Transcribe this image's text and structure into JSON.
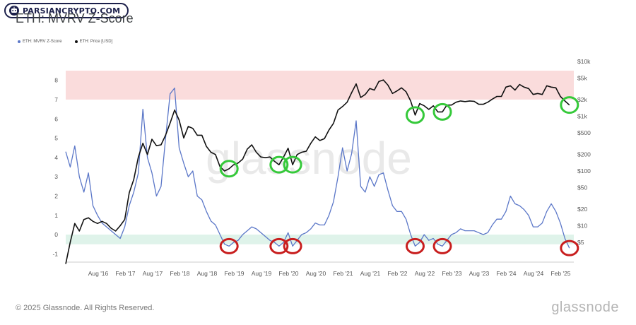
{
  "badge": {
    "text": "PARSIANCRYPTO.COM"
  },
  "colors": {
    "zscore": "#5b77c8",
    "price": "#111111",
    "red_band": "#fadcdc",
    "green_band": "#dff3ea",
    "green_circle": "#35c93a",
    "red_circle": "#c81e1e"
  },
  "footer": {
    "copyright": "© 2025 Glassnode. All Rights Reserved.",
    "brand": "glassnode"
  },
  "chart_data": {
    "type": "line",
    "title": "ETH: MVRV Z-Score",
    "legend_position": "top-left",
    "x_ticks": [
      "Aug '16",
      "Feb '17",
      "Aug '17",
      "Feb '18",
      "Aug '18",
      "Feb '19",
      "Aug '19",
      "Feb '20",
      "Aug '20",
      "Feb '21",
      "Aug '21",
      "Feb '22",
      "Aug '22",
      "Feb '23",
      "Aug '23",
      "Feb '24",
      "Aug '24",
      "Feb '25"
    ],
    "y_left": {
      "ticks": [
        "8",
        "7",
        "6",
        "5",
        "4",
        "3",
        "2",
        "1",
        "0",
        "-1"
      ],
      "range": [
        -1.5,
        8.5
      ]
    },
    "y_right": {
      "scale": "log",
      "ticks": [
        "$10k",
        "$5k",
        "$2k",
        "$1k",
        "$500",
        "$200",
        "$100",
        "$50",
        "$20",
        "$10",
        "$5"
      ],
      "range": [
        3,
        10000
      ]
    },
    "bands": [
      {
        "axis": "left",
        "from": 7,
        "to": 8.5,
        "color": "red"
      },
      {
        "axis": "left",
        "from": -0.5,
        "to": 0,
        "color": "green"
      }
    ],
    "series": [
      {
        "name": "ETH: MVRV Z-Score",
        "axis": "left",
        "color": "blue",
        "points": [
          [
            "2016-01",
            4.3
          ],
          [
            "2016-02",
            3.5
          ],
          [
            "2016-03",
            4.6
          ],
          [
            "2016-04",
            3.0
          ],
          [
            "2016-05",
            2.2
          ],
          [
            "2016-06",
            3.2
          ],
          [
            "2016-07",
            1.5
          ],
          [
            "2016-08",
            1.0
          ],
          [
            "2016-09",
            0.6
          ],
          [
            "2016-10",
            0.4
          ],
          [
            "2016-11",
            0.2
          ],
          [
            "2016-12",
            0.0
          ],
          [
            "2017-01",
            -0.2
          ],
          [
            "2017-02",
            0.4
          ],
          [
            "2017-03",
            1.5
          ],
          [
            "2017-04",
            2.2
          ],
          [
            "2017-05",
            3.2
          ],
          [
            "2017-06",
            6.5
          ],
          [
            "2017-07",
            4.0
          ],
          [
            "2017-08",
            3.2
          ],
          [
            "2017-09",
            2.0
          ],
          [
            "2017-10",
            2.5
          ],
          [
            "2017-11",
            5.0
          ],
          [
            "2017-12",
            7.3
          ],
          [
            "2018-01",
            7.6
          ],
          [
            "2018-02",
            4.5
          ],
          [
            "2018-03",
            3.7
          ],
          [
            "2018-04",
            3.0
          ],
          [
            "2018-05",
            3.3
          ],
          [
            "2018-06",
            2.0
          ],
          [
            "2018-07",
            1.8
          ],
          [
            "2018-08",
            1.2
          ],
          [
            "2018-09",
            0.7
          ],
          [
            "2018-10",
            0.5
          ],
          [
            "2018-11",
            0.0
          ],
          [
            "2018-12",
            -0.5
          ],
          [
            "2019-01",
            -0.6
          ],
          [
            "2019-02",
            -0.4
          ],
          [
            "2019-03",
            -0.3
          ],
          [
            "2019-04",
            0.0
          ],
          [
            "2019-05",
            0.2
          ],
          [
            "2019-06",
            0.4
          ],
          [
            "2019-07",
            0.3
          ],
          [
            "2019-08",
            0.1
          ],
          [
            "2019-09",
            -0.1
          ],
          [
            "2019-10",
            -0.3
          ],
          [
            "2019-11",
            -0.4
          ],
          [
            "2019-12",
            -0.6
          ],
          [
            "2020-01",
            -0.4
          ],
          [
            "2020-02",
            0.1
          ],
          [
            "2020-03",
            -0.6
          ],
          [
            "2020-04",
            -0.3
          ],
          [
            "2020-05",
            0.0
          ],
          [
            "2020-06",
            0.1
          ],
          [
            "2020-07",
            0.3
          ],
          [
            "2020-08",
            0.6
          ],
          [
            "2020-09",
            0.5
          ],
          [
            "2020-10",
            0.5
          ],
          [
            "2020-11",
            1.0
          ],
          [
            "2020-12",
            1.7
          ],
          [
            "2021-01",
            3.0
          ],
          [
            "2021-02",
            4.5
          ],
          [
            "2021-03",
            3.3
          ],
          [
            "2021-04",
            4.2
          ],
          [
            "2021-05",
            5.9
          ],
          [
            "2021-06",
            2.5
          ],
          [
            "2021-07",
            2.2
          ],
          [
            "2021-08",
            3.0
          ],
          [
            "2021-09",
            2.5
          ],
          [
            "2021-10",
            3.1
          ],
          [
            "2021-11",
            3.2
          ],
          [
            "2021-12",
            2.3
          ],
          [
            "2022-01",
            1.5
          ],
          [
            "2022-02",
            1.2
          ],
          [
            "2022-03",
            1.2
          ],
          [
            "2022-04",
            0.8
          ],
          [
            "2022-05",
            0.0
          ],
          [
            "2022-06",
            -0.6
          ],
          [
            "2022-07",
            -0.4
          ],
          [
            "2022-08",
            0.0
          ],
          [
            "2022-09",
            -0.3
          ],
          [
            "2022-10",
            -0.2
          ],
          [
            "2022-11",
            -0.5
          ],
          [
            "2022-12",
            -0.6
          ],
          [
            "2023-01",
            -0.3
          ],
          [
            "2023-02",
            0.0
          ],
          [
            "2023-03",
            0.1
          ],
          [
            "2023-04",
            0.3
          ],
          [
            "2023-05",
            0.2
          ],
          [
            "2023-06",
            0.2
          ],
          [
            "2023-07",
            0.2
          ],
          [
            "2023-08",
            0.1
          ],
          [
            "2023-09",
            0.0
          ],
          [
            "2023-10",
            0.1
          ],
          [
            "2023-11",
            0.5
          ],
          [
            "2023-12",
            0.8
          ],
          [
            "2024-01",
            0.8
          ],
          [
            "2024-02",
            1.2
          ],
          [
            "2024-03",
            2.0
          ],
          [
            "2024-04",
            1.6
          ],
          [
            "2024-05",
            1.5
          ],
          [
            "2024-06",
            1.3
          ],
          [
            "2024-07",
            1.0
          ],
          [
            "2024-08",
            0.4
          ],
          [
            "2024-09",
            0.4
          ],
          [
            "2024-10",
            0.6
          ],
          [
            "2024-11",
            1.2
          ],
          [
            "2024-12",
            1.6
          ],
          [
            "2025-01",
            1.2
          ],
          [
            "2025-02",
            0.6
          ],
          [
            "2025-03",
            -0.2
          ],
          [
            "2025-04",
            -0.7
          ]
        ]
      },
      {
        "name": "ETH: Price [USD]",
        "axis": "right",
        "color": "black",
        "points": [
          [
            "2016-01",
            2
          ],
          [
            "2016-02",
            5
          ],
          [
            "2016-03",
            11
          ],
          [
            "2016-04",
            8
          ],
          [
            "2016-05",
            13
          ],
          [
            "2016-06",
            14
          ],
          [
            "2016-07",
            12
          ],
          [
            "2016-08",
            11
          ],
          [
            "2016-09",
            12
          ],
          [
            "2016-10",
            11
          ],
          [
            "2016-11",
            9
          ],
          [
            "2016-12",
            8
          ],
          [
            "2017-01",
            10
          ],
          [
            "2017-02",
            13
          ],
          [
            "2017-03",
            40
          ],
          [
            "2017-04",
            70
          ],
          [
            "2017-05",
            180
          ],
          [
            "2017-06",
            320
          ],
          [
            "2017-07",
            200
          ],
          [
            "2017-08",
            380
          ],
          [
            "2017-09",
            290
          ],
          [
            "2017-10",
            300
          ],
          [
            "2017-11",
            450
          ],
          [
            "2017-12",
            750
          ],
          [
            "2018-01",
            1300
          ],
          [
            "2018-02",
            850
          ],
          [
            "2018-03",
            400
          ],
          [
            "2018-04",
            650
          ],
          [
            "2018-05",
            600
          ],
          [
            "2018-06",
            450
          ],
          [
            "2018-07",
            450
          ],
          [
            "2018-08",
            280
          ],
          [
            "2018-09",
            220
          ],
          [
            "2018-10",
            200
          ],
          [
            "2018-11",
            120
          ],
          [
            "2018-12",
            100
          ],
          [
            "2019-01",
            110
          ],
          [
            "2019-02",
            130
          ],
          [
            "2019-03",
            140
          ],
          [
            "2019-04",
            165
          ],
          [
            "2019-05",
            250
          ],
          [
            "2019-06",
            300
          ],
          [
            "2019-07",
            220
          ],
          [
            "2019-08",
            180
          ],
          [
            "2019-09",
            175
          ],
          [
            "2019-10",
            180
          ],
          [
            "2019-11",
            150
          ],
          [
            "2019-12",
            130
          ],
          [
            "2020-01",
            180
          ],
          [
            "2020-02",
            260
          ],
          [
            "2020-03",
            130
          ],
          [
            "2020-04",
            200
          ],
          [
            "2020-05",
            220
          ],
          [
            "2020-06",
            230
          ],
          [
            "2020-07",
            320
          ],
          [
            "2020-08",
            420
          ],
          [
            "2020-09",
            360
          ],
          [
            "2020-10",
            390
          ],
          [
            "2020-11",
            560
          ],
          [
            "2020-12",
            740
          ],
          [
            "2021-01",
            1300
          ],
          [
            "2021-02",
            1500
          ],
          [
            "2021-03",
            1800
          ],
          [
            "2021-04",
            2700
          ],
          [
            "2021-05",
            3900
          ],
          [
            "2021-06",
            2200
          ],
          [
            "2021-07",
            2500
          ],
          [
            "2021-08",
            3200
          ],
          [
            "2021-09",
            3000
          ],
          [
            "2021-10",
            4300
          ],
          [
            "2021-11",
            4600
          ],
          [
            "2021-12",
            3700
          ],
          [
            "2022-01",
            2600
          ],
          [
            "2022-02",
            2900
          ],
          [
            "2022-03",
            3300
          ],
          [
            "2022-04",
            2800
          ],
          [
            "2022-05",
            1900
          ],
          [
            "2022-06",
            1050
          ],
          [
            "2022-07",
            1700
          ],
          [
            "2022-08",
            1550
          ],
          [
            "2022-09",
            1330
          ],
          [
            "2022-10",
            1550
          ],
          [
            "2022-11",
            1200
          ],
          [
            "2022-12",
            1200
          ],
          [
            "2023-01",
            1600
          ],
          [
            "2023-02",
            1600
          ],
          [
            "2023-03",
            1800
          ],
          [
            "2023-04",
            1900
          ],
          [
            "2023-05",
            1850
          ],
          [
            "2023-06",
            1900
          ],
          [
            "2023-07",
            1870
          ],
          [
            "2023-08",
            1650
          ],
          [
            "2023-09",
            1650
          ],
          [
            "2023-10",
            1800
          ],
          [
            "2023-11",
            2050
          ],
          [
            "2023-12",
            2300
          ],
          [
            "2024-01",
            2300
          ],
          [
            "2024-02",
            3400
          ],
          [
            "2024-03",
            3600
          ],
          [
            "2024-04",
            3000
          ],
          [
            "2024-05",
            3800
          ],
          [
            "2024-06",
            3400
          ],
          [
            "2024-07",
            3200
          ],
          [
            "2024-08",
            2500
          ],
          [
            "2024-09",
            2600
          ],
          [
            "2024-10",
            2500
          ],
          [
            "2024-11",
            3600
          ],
          [
            "2024-12",
            3400
          ],
          [
            "2025-01",
            3300
          ],
          [
            "2025-02",
            2300
          ],
          [
            "2025-03",
            1900
          ],
          [
            "2025-04",
            1600
          ]
        ]
      }
    ],
    "annotations": {
      "green_circles": [
        "2019-01",
        "2019-12",
        "2020-03",
        "2022-06",
        "2022-12",
        "2025-04"
      ],
      "red_circles": [
        "2019-01",
        "2019-12",
        "2020-03",
        "2022-06",
        "2022-12",
        "2025-04"
      ]
    },
    "watermark": "glassnode"
  }
}
